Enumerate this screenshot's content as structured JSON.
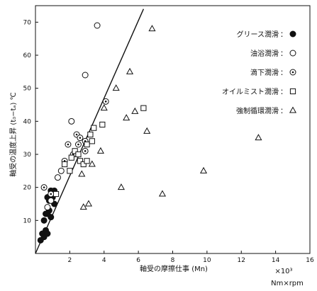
{
  "chart_data": {
    "type": "scatter",
    "title": "",
    "xlabel": "軸受の摩擦仕事 (Mn)",
    "ylabel": "軸受の温度上昇 (t₀−tₐ) ℃",
    "x_multiplier": "×10³",
    "x_unit": "Nm×rpm",
    "xlim": [
      0,
      16
    ],
    "ylim": [
      0,
      75
    ],
    "xticks": [
      2,
      4,
      6,
      8,
      10,
      12,
      14,
      16
    ],
    "yticks": [
      10,
      20,
      30,
      40,
      50,
      60,
      70
    ],
    "grid": false,
    "legend_position": "right",
    "trend_line": {
      "from": [
        0,
        0
      ],
      "to": [
        6.3,
        74
      ]
    },
    "series": [
      {
        "name": "グリース潤滑",
        "marker": "filled-circle",
        "points": [
          [
            0.3,
            4
          ],
          [
            0.4,
            6
          ],
          [
            0.5,
            5
          ],
          [
            0.6,
            7
          ],
          [
            0.7,
            6
          ],
          [
            0.5,
            10
          ],
          [
            0.6,
            12
          ],
          [
            0.7,
            12
          ],
          [
            0.8,
            13
          ],
          [
            0.9,
            11
          ],
          [
            0.8,
            16
          ],
          [
            1.0,
            17
          ],
          [
            1.1,
            19
          ],
          [
            1.1,
            15
          ],
          [
            0.9,
            19
          ],
          [
            0.7,
            17
          ]
        ]
      },
      {
        "name": "油浴潤滑",
        "marker": "open-circle",
        "points": [
          [
            0.7,
            14
          ],
          [
            0.9,
            16
          ],
          [
            1.3,
            23
          ],
          [
            1.5,
            25
          ],
          [
            2.1,
            40
          ],
          [
            2.9,
            54
          ],
          [
            3.6,
            69
          ]
        ]
      },
      {
        "name": "滴下潤滑",
        "marker": "circle-dot",
        "points": [
          [
            0.5,
            20
          ],
          [
            0.9,
            18
          ],
          [
            1.7,
            28
          ],
          [
            1.9,
            33
          ],
          [
            2.2,
            30
          ],
          [
            2.4,
            36
          ],
          [
            2.5,
            33
          ],
          [
            2.6,
            35
          ],
          [
            2.9,
            34
          ],
          [
            2.9,
            31
          ],
          [
            4.1,
            46
          ]
        ]
      },
      {
        "name": "オイルミスト潤滑",
        "marker": "open-square",
        "points": [
          [
            1.2,
            18
          ],
          [
            1.7,
            27
          ],
          [
            2.0,
            25
          ],
          [
            2.1,
            29
          ],
          [
            2.3,
            31
          ],
          [
            2.5,
            30
          ],
          [
            2.6,
            28
          ],
          [
            2.8,
            27
          ],
          [
            3.0,
            33
          ],
          [
            3.2,
            36
          ],
          [
            3.4,
            38
          ],
          [
            3.3,
            34
          ],
          [
            3.0,
            28
          ],
          [
            3.9,
            39
          ],
          [
            6.3,
            44
          ]
        ]
      },
      {
        "name": "強制循環潤滑",
        "marker": "open-triangle",
        "points": [
          [
            2.7,
            24
          ],
          [
            2.8,
            14
          ],
          [
            3.1,
            15
          ],
          [
            3.3,
            27
          ],
          [
            3.8,
            31
          ],
          [
            4.0,
            44
          ],
          [
            4.7,
            50
          ],
          [
            5.0,
            20
          ],
          [
            5.3,
            41
          ],
          [
            5.5,
            55
          ],
          [
            5.8,
            43
          ],
          [
            6.5,
            37
          ],
          [
            6.8,
            68
          ],
          [
            7.4,
            18
          ],
          [
            9.8,
            25
          ],
          [
            13.0,
            35
          ]
        ]
      }
    ]
  }
}
